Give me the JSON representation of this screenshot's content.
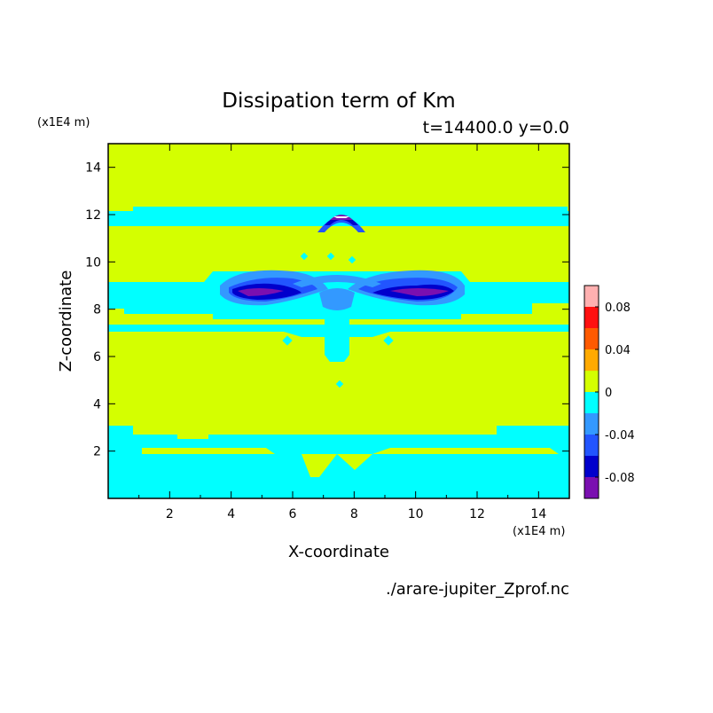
{
  "chart_data": {
    "type": "heatmap",
    "title": "Dissipation term of Km",
    "subtitle": "t=14400.0 y=0.0",
    "xlabel": "X-coordinate",
    "ylabel": "Z-coordinate",
    "x_unit": "(x1E4 m)",
    "y_unit": "(x1E4 m)",
    "xlim": [
      0,
      15
    ],
    "ylim": [
      0,
      15
    ],
    "x_ticks": [
      "2",
      "4",
      "6",
      "8",
      "10",
      "12",
      "14"
    ],
    "y_ticks": [
      "2",
      "4",
      "6",
      "8",
      "10",
      "12",
      "14"
    ],
    "footer": "./arare-jupiter_Zprof.nc",
    "colorbar": {
      "levels": [
        -0.1,
        -0.08,
        -0.06,
        -0.04,
        -0.02,
        0,
        0.02,
        0.04,
        0.06,
        0.08,
        0.1
      ],
      "colors": [
        "#7a0fb0",
        "#0000cc",
        "#2255ff",
        "#3399ff",
        "#00ffff",
        "#d4ff00",
        "#ffaa00",
        "#ff5a00",
        "#ff1010",
        "#ffb0b0"
      ],
      "tick_labels": [
        "0.08",
        "0.04",
        "0",
        "-0.04",
        "-0.08"
      ]
    },
    "contours": {
      "background_level": "0 to 0.02",
      "bands": [
        {
          "z_range": [
            11.6,
            12.0
          ],
          "level": "-0.02 to 0"
        },
        {
          "z_range": [
            8.4,
            9.2
          ],
          "level": "-0.02 to 0"
        },
        {
          "z_range": [
            6.8,
            7.2
          ],
          "level": "-0.02 to 0"
        },
        {
          "z_range": [
            0.0,
            2.8
          ],
          "level": "-0.02 to 0"
        }
      ],
      "features": [
        {
          "name": "upper arc",
          "x": 7.5,
          "z": 11.7,
          "min_level": "-0.1 to -0.08"
        },
        {
          "name": "left lobe",
          "x": 5.2,
          "z": 8.6,
          "min_level": "-0.1 to -0.08"
        },
        {
          "name": "right lobe",
          "x": 9.8,
          "z": 8.6,
          "min_level": "-0.1 to -0.08"
        }
      ]
    }
  }
}
